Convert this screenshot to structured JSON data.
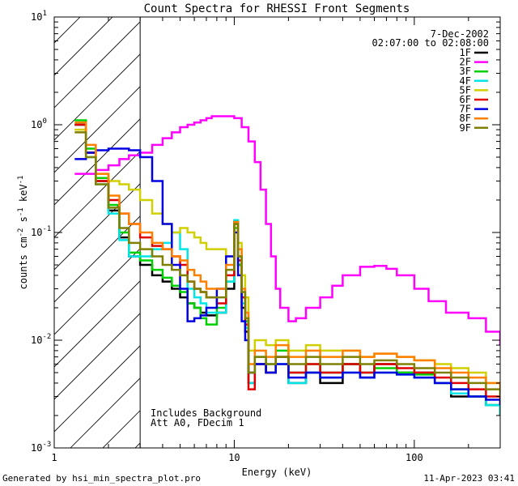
{
  "chart_data": {
    "type": "line",
    "title": "Count Spectra for RHESSI Front Segments",
    "xlabel": "Energy (keV)",
    "ylabel": {
      "base": "counts cm",
      "sup1": "-2",
      "mid1": " s",
      "sup2": "-1",
      "mid2": " keV",
      "sup3": "-1"
    },
    "x_scale": "log",
    "y_scale": "log",
    "xlim": [
      1,
      300
    ],
    "ylim": [
      0.001,
      10
    ],
    "x_ticks": [
      {
        "value": 1,
        "label": "1"
      },
      {
        "value": 10,
        "label": "10"
      },
      {
        "value": 100,
        "label": "100"
      }
    ],
    "y_ticks": [
      {
        "value": 0.001,
        "base": "10",
        "exp": "-3"
      },
      {
        "value": 0.01,
        "base": "10",
        "exp": "-2"
      },
      {
        "value": 0.1,
        "base": "10",
        "exp": "-1"
      },
      {
        "value": 1,
        "base": "10",
        "exp": "0"
      },
      {
        "value": 10,
        "base": "10",
        "exp": "1"
      }
    ],
    "shaded_region": {
      "x_start": 1,
      "x_end": 3,
      "pattern": "diagonal-hatch"
    },
    "date": "7-Dec-2002",
    "time_range": "02:07:00 to 02:08:00",
    "annotation_lines": [
      "Includes Background",
      "Att A0, FDecim 1"
    ],
    "footer_left": "Generated by hsi_min_spectra_plot.pro",
    "footer_right": "11-Apr-2023 03:41",
    "series": [
      {
        "name": "1F",
        "color": "#000000",
        "x": [
          1.3,
          1.5,
          1.7,
          2.0,
          2.3,
          2.6,
          3.0,
          3.5,
          4.0,
          4.5,
          5.0,
          5.5,
          6.0,
          6.5,
          7.0,
          8.0,
          9.0,
          10.0,
          10.5,
          11.0,
          11.5,
          12.0,
          13.0,
          15.0,
          17.0,
          20.0,
          25.0,
          30.0,
          40.0,
          50.0,
          60.0,
          80.0,
          100.0,
          130.0,
          160.0,
          200.0,
          250.0,
          300.0
        ],
        "y": [
          1.0,
          0.55,
          0.3,
          0.16,
          0.09,
          0.06,
          0.05,
          0.04,
          0.035,
          0.03,
          0.025,
          0.022,
          0.02,
          0.018,
          0.017,
          0.018,
          0.03,
          0.12,
          0.05,
          0.02,
          0.012,
          0.004,
          0.006,
          0.005,
          0.007,
          0.004,
          0.005,
          0.004,
          0.006,
          0.0045,
          0.006,
          0.005,
          0.005,
          0.004,
          0.003,
          0.003,
          0.0025,
          0.002
        ]
      },
      {
        "name": "2F",
        "color": "#ff00ff",
        "x": [
          1.3,
          1.5,
          1.7,
          2.0,
          2.3,
          2.6,
          3.0,
          3.5,
          4.0,
          4.5,
          5.0,
          5.5,
          6.0,
          6.5,
          7.0,
          7.5,
          8.0,
          9.0,
          10.0,
          11.0,
          12.0,
          13.0,
          14.0,
          15.0,
          16.0,
          17.0,
          18.0,
          20.0,
          22.0,
          25.0,
          30.0,
          35.0,
          40.0,
          50.0,
          60.0,
          70.0,
          80.0,
          100.0,
          120.0,
          150.0,
          200.0,
          250.0,
          300.0
        ],
        "y": [
          0.35,
          0.35,
          0.38,
          0.42,
          0.48,
          0.52,
          0.55,
          0.65,
          0.75,
          0.85,
          0.95,
          1.0,
          1.05,
          1.1,
          1.15,
          1.2,
          1.2,
          1.2,
          1.15,
          0.95,
          0.7,
          0.45,
          0.25,
          0.12,
          0.06,
          0.03,
          0.02,
          0.015,
          0.016,
          0.02,
          0.025,
          0.032,
          0.04,
          0.048,
          0.049,
          0.046,
          0.04,
          0.03,
          0.023,
          0.018,
          0.016,
          0.012,
          0.009
        ]
      },
      {
        "name": "3F",
        "color": "#00d000",
        "x": [
          1.3,
          1.5,
          1.7,
          2.0,
          2.3,
          2.6,
          3.0,
          3.5,
          4.0,
          4.5,
          5.0,
          5.5,
          6.0,
          6.5,
          7.0,
          8.0,
          9.0,
          10.0,
          10.5,
          11.0,
          11.5,
          12.0,
          13.0,
          15.0,
          17.0,
          20.0,
          25.0,
          30.0,
          40.0,
          50.0,
          60.0,
          80.0,
          100.0,
          130.0,
          160.0,
          200.0,
          250.0,
          300.0
        ],
        "y": [
          1.1,
          0.6,
          0.32,
          0.18,
          0.1,
          0.065,
          0.055,
          0.045,
          0.038,
          0.032,
          0.028,
          0.022,
          0.02,
          0.016,
          0.014,
          0.02,
          0.035,
          0.11,
          0.05,
          0.025,
          0.015,
          0.005,
          0.007,
          0.006,
          0.008,
          0.005,
          0.006,
          0.005,
          0.006,
          0.005,
          0.0055,
          0.005,
          0.0048,
          0.004,
          0.0035,
          0.003,
          0.0025,
          0.0022
        ]
      },
      {
        "name": "4F",
        "color": "#00e5e5",
        "x": [
          1.3,
          1.5,
          1.7,
          2.0,
          2.3,
          2.6,
          3.0,
          3.5,
          4.0,
          4.5,
          5.0,
          5.5,
          6.0,
          6.5,
          7.0,
          8.0,
          9.0,
          10.0,
          10.5,
          11.0,
          11.5,
          12.0,
          13.0,
          15.0,
          17.0,
          20.0,
          25.0,
          30.0,
          40.0,
          50.0,
          60.0,
          80.0,
          100.0,
          130.0,
          160.0,
          200.0,
          250.0,
          300.0
        ],
        "y": [
          1.0,
          0.5,
          0.28,
          0.15,
          0.085,
          0.06,
          0.06,
          0.07,
          0.08,
          0.1,
          0.07,
          0.03,
          0.025,
          0.022,
          0.018,
          0.018,
          0.035,
          0.13,
          0.06,
          0.022,
          0.013,
          0.004,
          0.006,
          0.005,
          0.006,
          0.004,
          0.005,
          0.0045,
          0.005,
          0.0045,
          0.005,
          0.0048,
          0.0045,
          0.004,
          0.0032,
          0.003,
          0.0025,
          0.002
        ]
      },
      {
        "name": "5F",
        "color": "#d0d000",
        "x": [
          1.3,
          1.5,
          1.7,
          2.0,
          2.3,
          2.6,
          3.0,
          3.5,
          4.0,
          4.5,
          5.0,
          5.5,
          6.0,
          6.5,
          7.0,
          8.0,
          9.0,
          10.0,
          10.5,
          11.0,
          11.5,
          12.0,
          13.0,
          15.0,
          17.0,
          20.0,
          25.0,
          30.0,
          40.0,
          50.0,
          60.0,
          80.0,
          100.0,
          130.0,
          160.0,
          200.0,
          250.0,
          300.0
        ],
        "y": [
          0.9,
          0.55,
          0.35,
          0.3,
          0.28,
          0.25,
          0.2,
          0.15,
          0.12,
          0.1,
          0.11,
          0.1,
          0.09,
          0.08,
          0.07,
          0.07,
          0.06,
          0.12,
          0.08,
          0.04,
          0.025,
          0.008,
          0.01,
          0.009,
          0.01,
          0.008,
          0.009,
          0.008,
          0.008,
          0.007,
          0.0075,
          0.007,
          0.0065,
          0.006,
          0.0055,
          0.005,
          0.004,
          0.003
        ]
      },
      {
        "name": "6F",
        "color": "#e00000",
        "x": [
          1.3,
          1.5,
          1.7,
          2.0,
          2.3,
          2.6,
          3.0,
          3.5,
          4.0,
          4.5,
          5.0,
          5.5,
          6.0,
          6.5,
          7.0,
          8.0,
          9.0,
          10.0,
          10.5,
          11.0,
          11.5,
          12.0,
          13.0,
          15.0,
          17.0,
          20.0,
          25.0,
          30.0,
          40.0,
          50.0,
          60.0,
          80.0,
          100.0,
          130.0,
          160.0,
          200.0,
          250.0,
          300.0
        ],
        "y": [
          1.0,
          0.55,
          0.3,
          0.2,
          0.15,
          0.12,
          0.09,
          0.075,
          0.07,
          0.06,
          0.05,
          0.035,
          0.03,
          0.028,
          0.025,
          0.022,
          0.04,
          0.125,
          0.055,
          0.025,
          0.014,
          0.0035,
          0.006,
          0.005,
          0.007,
          0.005,
          0.006,
          0.005,
          0.006,
          0.005,
          0.006,
          0.0055,
          0.005,
          0.0045,
          0.004,
          0.0035,
          0.003,
          0.0025
        ]
      },
      {
        "name": "7F",
        "color": "#0000e0",
        "x": [
          1.3,
          1.5,
          1.7,
          2.0,
          2.3,
          2.6,
          3.0,
          3.5,
          4.0,
          4.5,
          5.0,
          5.5,
          6.0,
          6.5,
          7.0,
          8.0,
          9.0,
          10.0,
          10.5,
          11.0,
          11.5,
          12.0,
          13.0,
          15.0,
          17.0,
          20.0,
          25.0,
          30.0,
          40.0,
          50.0,
          60.0,
          80.0,
          100.0,
          130.0,
          160.0,
          200.0,
          250.0,
          300.0
        ],
        "y": [
          0.48,
          0.55,
          0.58,
          0.6,
          0.6,
          0.58,
          0.5,
          0.3,
          0.12,
          0.05,
          0.03,
          0.015,
          0.016,
          0.017,
          0.02,
          0.03,
          0.06,
          0.1,
          0.04,
          0.015,
          0.01,
          0.005,
          0.006,
          0.005,
          0.006,
          0.0045,
          0.005,
          0.0045,
          0.005,
          0.0045,
          0.005,
          0.0048,
          0.0045,
          0.004,
          0.0035,
          0.003,
          0.0028,
          0.0025
        ]
      },
      {
        "name": "8F",
        "color": "#ff8000",
        "x": [
          1.3,
          1.5,
          1.7,
          2.0,
          2.3,
          2.6,
          3.0,
          3.5,
          4.0,
          4.5,
          5.0,
          5.5,
          6.0,
          6.5,
          7.0,
          8.0,
          9.0,
          10.0,
          10.5,
          11.0,
          11.5,
          12.0,
          13.0,
          15.0,
          17.0,
          20.0,
          25.0,
          30.0,
          40.0,
          50.0,
          60.0,
          80.0,
          100.0,
          130.0,
          160.0,
          200.0,
          250.0,
          300.0
        ],
        "y": [
          1.05,
          0.65,
          0.35,
          0.22,
          0.15,
          0.12,
          0.1,
          0.08,
          0.07,
          0.06,
          0.055,
          0.045,
          0.04,
          0.035,
          0.03,
          0.03,
          0.05,
          0.125,
          0.07,
          0.03,
          0.018,
          0.006,
          0.008,
          0.007,
          0.009,
          0.007,
          0.008,
          0.007,
          0.008,
          0.007,
          0.0075,
          0.007,
          0.0065,
          0.0055,
          0.005,
          0.0045,
          0.004,
          0.0035
        ]
      },
      {
        "name": "9F",
        "color": "#808000",
        "x": [
          1.3,
          1.5,
          1.7,
          2.0,
          2.3,
          2.6,
          3.0,
          3.5,
          4.0,
          4.5,
          5.0,
          5.5,
          6.0,
          6.5,
          7.0,
          8.0,
          9.0,
          10.0,
          10.5,
          11.0,
          11.5,
          12.0,
          13.0,
          15.0,
          17.0,
          20.0,
          25.0,
          30.0,
          40.0,
          50.0,
          60.0,
          80.0,
          100.0,
          130.0,
          160.0,
          200.0,
          250.0,
          300.0
        ],
        "y": [
          0.85,
          0.5,
          0.28,
          0.17,
          0.11,
          0.08,
          0.07,
          0.06,
          0.05,
          0.045,
          0.04,
          0.035,
          0.03,
          0.028,
          0.025,
          0.025,
          0.045,
          0.12,
          0.06,
          0.028,
          0.016,
          0.005,
          0.007,
          0.006,
          0.007,
          0.006,
          0.007,
          0.006,
          0.007,
          0.006,
          0.0065,
          0.006,
          0.0055,
          0.005,
          0.0045,
          0.004,
          0.0035,
          0.003
        ]
      }
    ]
  }
}
